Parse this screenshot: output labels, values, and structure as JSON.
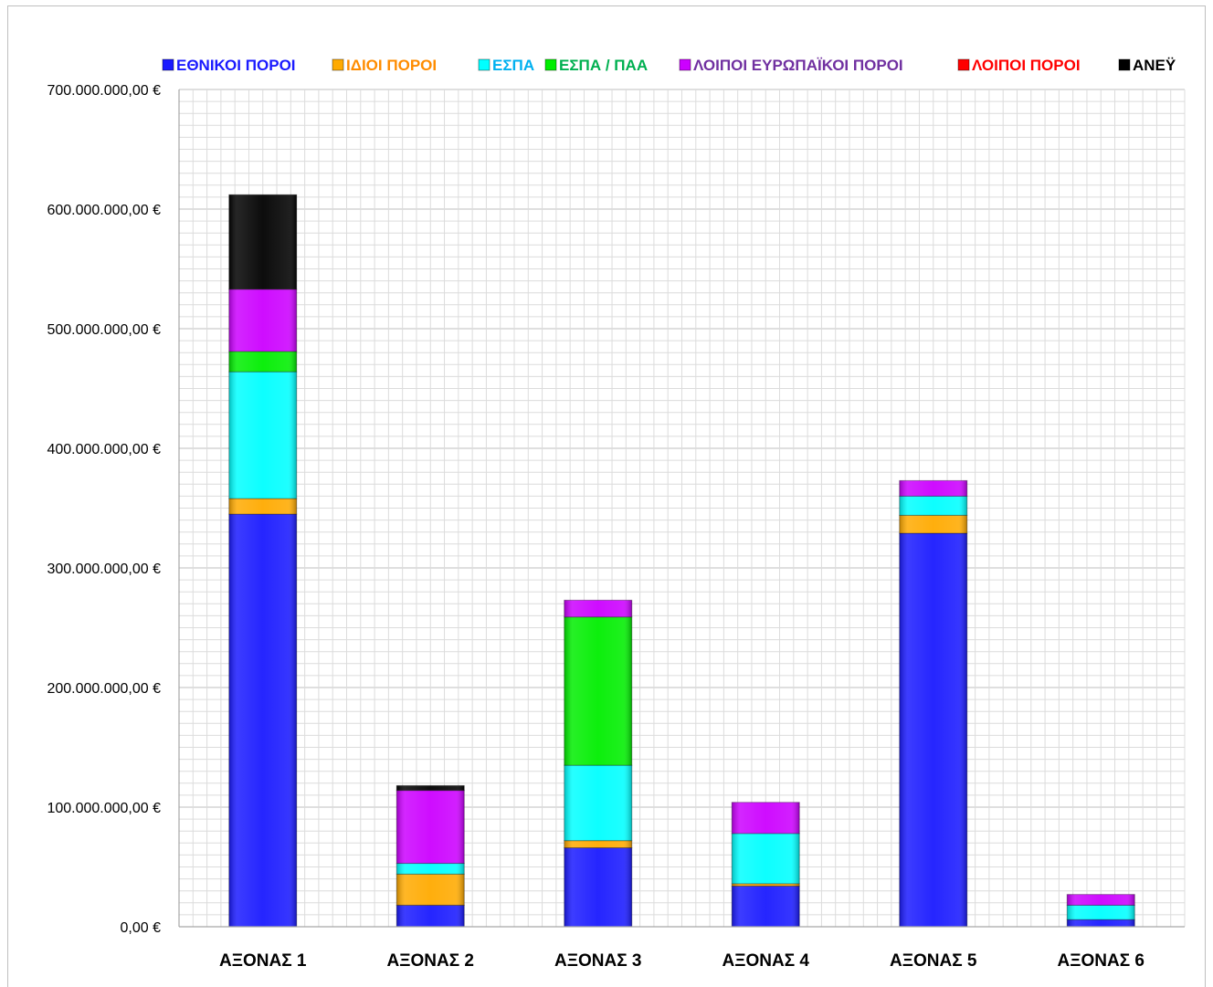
{
  "chart_data": {
    "type": "bar",
    "stacked": true,
    "title": "",
    "xlabel": "",
    "ylabel": "",
    "ylim": [
      0,
      700000000
    ],
    "y_ticks": [
      0,
      100000000,
      200000000,
      300000000,
      400000000,
      500000000,
      600000000,
      700000000
    ],
    "y_tick_labels": [
      "0,00 €",
      "100.000.000,00 €",
      "200.000.000,00 €",
      "300.000.000,00 €",
      "400.000.000,00 €",
      "500.000.000,00 €",
      "600.000.000,00 €",
      "700.000.000,00 €"
    ],
    "grid": true,
    "legend_position": "top",
    "categories": [
      "ΑΞΟΝΑΣ 1",
      "ΑΞΟΝΑΣ 2",
      "ΑΞΟΝΑΣ 3",
      "ΑΞΟΝΑΣ 4",
      "ΑΞΟΝΑΣ 5",
      "ΑΞΟΝΑΣ 6"
    ],
    "series": [
      {
        "name": "ΕΘΝΙΚΟΙ ΠΟΡΟΙ",
        "color": "#1a1aff",
        "values": [
          345000000,
          18000000,
          66000000,
          34000000,
          329000000,
          6000000
        ]
      },
      {
        "name": "ΙΔΙΟΙ ΠΟΡΟΙ",
        "color": "#ffaa00",
        "values": [
          13000000,
          26000000,
          6000000,
          2000000,
          15000000,
          0
        ]
      },
      {
        "name": "ΕΣΠΑ",
        "color": "#00ffff",
        "values": [
          106000000,
          9000000,
          63000000,
          42000000,
          16000000,
          12000000
        ]
      },
      {
        "name": "ΕΣΠΑ / ΠΑΑ",
        "color": "#00ee00",
        "values": [
          17000000,
          0,
          124000000,
          0,
          0,
          0
        ]
      },
      {
        "name": "ΛΟΙΠΟΙ ΕΥΡΩΠΑΪΚΟΙ ΠΟΡΟΙ",
        "color": "#cc00ff",
        "values": [
          52000000,
          61000000,
          14000000,
          26000000,
          13000000,
          9000000
        ]
      },
      {
        "name": "ΛΟΙΠΟΙ ΠΟΡΟΙ",
        "color": "#ff0000",
        "values": [
          0,
          0,
          0,
          0,
          0,
          0
        ]
      },
      {
        "name": "ΑΝΕΫ",
        "color": "#000000",
        "values": [
          79000000,
          4000000,
          0,
          0,
          0,
          0
        ]
      }
    ],
    "legend_text_colors": [
      "#1a1aff",
      "#ff8c00",
      "#00b0f0",
      "#00b050",
      "#7030a0",
      "#ff0000",
      "#000000"
    ]
  }
}
